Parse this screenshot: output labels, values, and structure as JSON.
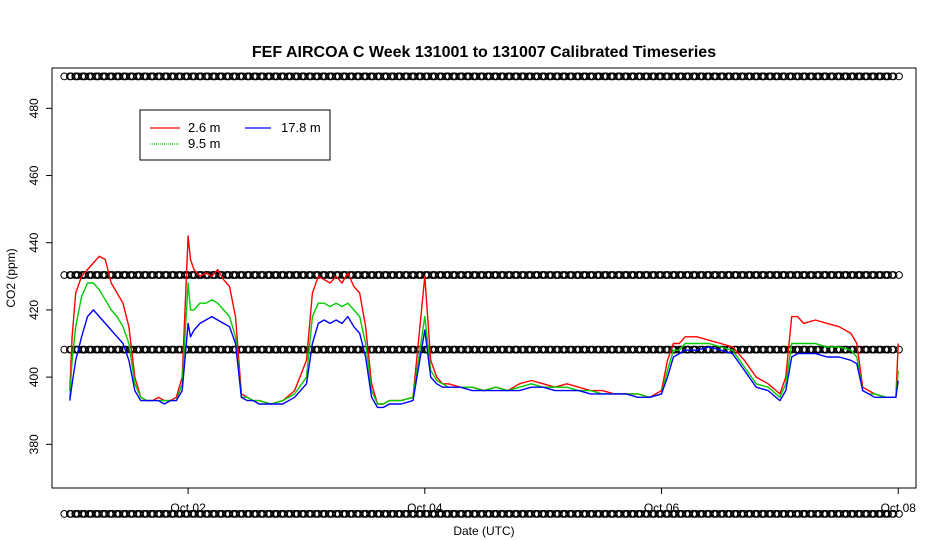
{
  "chart_data": {
    "type": "line",
    "title": "FEF AIRCOA C  Week 131001 to 131007  Calibrated Timeseries",
    "xlabel": "Date (UTC)",
    "ylabel": "CO2 (ppm)",
    "x_ticks": [
      "Oct 02",
      "Oct 04",
      "Oct 06",
      "Oct 08"
    ],
    "x_tick_days": [
      2,
      4,
      6,
      8
    ],
    "xlim": [
      0.85,
      8.15
    ],
    "y_ticks": [
      380,
      400,
      420,
      440,
      460,
      480
    ],
    "ylim": [
      367,
      492
    ],
    "grid": false,
    "legend": {
      "placement": "top-left",
      "entries": [
        "2.6 m",
        "9.5 m",
        "17.8 m"
      ]
    },
    "colors": {
      "2.6 m": "#ff0000",
      "9.5 m": "#00cc00",
      "17.8 m": "#0000ff",
      "reference": "#000000"
    },
    "series": [
      {
        "name": "2.6 m",
        "x": [
          1.0,
          1.02,
          1.05,
          1.1,
          1.15,
          1.2,
          1.25,
          1.3,
          1.35,
          1.4,
          1.45,
          1.5,
          1.55,
          1.6,
          1.65,
          1.7,
          1.75,
          1.8,
          1.85,
          1.9,
          1.95,
          2.0,
          2.02,
          2.05,
          2.1,
          2.15,
          2.2,
          2.25,
          2.3,
          2.35,
          2.4,
          2.45,
          2.5,
          2.55,
          2.6,
          2.7,
          2.8,
          2.9,
          3.0,
          3.05,
          3.1,
          3.15,
          3.2,
          3.25,
          3.3,
          3.35,
          3.4,
          3.45,
          3.5,
          3.55,
          3.6,
          3.65,
          3.7,
          3.8,
          3.9,
          4.0,
          4.05,
          4.1,
          4.15,
          4.2,
          4.3,
          4.4,
          4.5,
          4.6,
          4.7,
          4.8,
          4.9,
          5.0,
          5.1,
          5.2,
          5.3,
          5.4,
          5.5,
          5.6,
          5.7,
          5.8,
          5.9,
          6.0,
          6.05,
          6.1,
          6.15,
          6.2,
          6.3,
          6.4,
          6.5,
          6.6,
          6.7,
          6.8,
          6.9,
          7.0,
          7.05,
          7.1,
          7.15,
          7.2,
          7.3,
          7.4,
          7.5,
          7.6,
          7.65,
          7.7,
          7.75,
          7.8,
          7.9,
          7.98,
          8.0
        ],
        "values": [
          396,
          412,
          425,
          430,
          432,
          434,
          436,
          435,
          428,
          425,
          422,
          415,
          400,
          394,
          393,
          393,
          394,
          393,
          393,
          394,
          400,
          442,
          435,
          432,
          430,
          431,
          430,
          432,
          429,
          427,
          418,
          395,
          394,
          393,
          393,
          392,
          393,
          396,
          405,
          425,
          430,
          429,
          428,
          430,
          428,
          431,
          427,
          425,
          415,
          398,
          392,
          392,
          393,
          393,
          394,
          430,
          405,
          400,
          398,
          398,
          397,
          397,
          396,
          397,
          396,
          398,
          399,
          398,
          397,
          398,
          397,
          396,
          396,
          395,
          395,
          395,
          394,
          396,
          405,
          410,
          410,
          412,
          412,
          411,
          410,
          409,
          405,
          400,
          398,
          395,
          400,
          418,
          418,
          416,
          417,
          416,
          415,
          413,
          410,
          397,
          396,
          395,
          394,
          394,
          410
        ]
      },
      {
        "name": "9.5 m",
        "x": [
          1.0,
          1.02,
          1.05,
          1.1,
          1.15,
          1.2,
          1.25,
          1.3,
          1.35,
          1.4,
          1.45,
          1.5,
          1.55,
          1.6,
          1.65,
          1.7,
          1.75,
          1.8,
          1.85,
          1.9,
          1.95,
          2.0,
          2.02,
          2.05,
          2.1,
          2.15,
          2.2,
          2.25,
          2.3,
          2.35,
          2.4,
          2.45,
          2.5,
          2.55,
          2.6,
          2.7,
          2.8,
          2.9,
          3.0,
          3.05,
          3.1,
          3.15,
          3.2,
          3.25,
          3.3,
          3.35,
          3.4,
          3.45,
          3.5,
          3.55,
          3.6,
          3.65,
          3.7,
          3.8,
          3.9,
          4.0,
          4.05,
          4.1,
          4.15,
          4.2,
          4.3,
          4.4,
          4.5,
          4.6,
          4.7,
          4.8,
          4.9,
          5.0,
          5.1,
          5.2,
          5.3,
          5.4,
          5.5,
          5.6,
          5.7,
          5.8,
          5.9,
          6.0,
          6.05,
          6.1,
          6.15,
          6.2,
          6.3,
          6.4,
          6.5,
          6.6,
          6.7,
          6.8,
          6.9,
          7.0,
          7.05,
          7.1,
          7.15,
          7.2,
          7.3,
          7.4,
          7.5,
          7.6,
          7.65,
          7.7,
          7.75,
          7.8,
          7.9,
          7.98,
          8.0
        ],
        "values": [
          394,
          405,
          415,
          424,
          428,
          428,
          426,
          423,
          420,
          418,
          415,
          410,
          398,
          394,
          393,
          393,
          393,
          393,
          393,
          393,
          398,
          428,
          420,
          420,
          422,
          422,
          423,
          422,
          420,
          418,
          412,
          394,
          394,
          393,
          393,
          392,
          393,
          395,
          400,
          418,
          422,
          422,
          421,
          422,
          421,
          422,
          420,
          418,
          410,
          396,
          392,
          392,
          393,
          393,
          394,
          418,
          402,
          399,
          398,
          397,
          397,
          397,
          396,
          397,
          396,
          397,
          398,
          397,
          397,
          397,
          396,
          396,
          395,
          395,
          395,
          395,
          394,
          395,
          402,
          408,
          408,
          410,
          410,
          410,
          409,
          408,
          403,
          398,
          397,
          394,
          398,
          410,
          410,
          410,
          410,
          409,
          409,
          408,
          406,
          396,
          395,
          395,
          394,
          394,
          402
        ]
      },
      {
        "name": "17.8 m",
        "x": [
          1.0,
          1.02,
          1.05,
          1.1,
          1.15,
          1.2,
          1.25,
          1.3,
          1.35,
          1.4,
          1.45,
          1.5,
          1.55,
          1.6,
          1.65,
          1.7,
          1.75,
          1.8,
          1.85,
          1.9,
          1.95,
          2.0,
          2.02,
          2.05,
          2.1,
          2.15,
          2.2,
          2.25,
          2.3,
          2.35,
          2.4,
          2.45,
          2.5,
          2.55,
          2.6,
          2.7,
          2.8,
          2.9,
          3.0,
          3.05,
          3.1,
          3.15,
          3.2,
          3.25,
          3.3,
          3.35,
          3.4,
          3.45,
          3.5,
          3.55,
          3.6,
          3.65,
          3.7,
          3.8,
          3.9,
          4.0,
          4.05,
          4.1,
          4.15,
          4.2,
          4.3,
          4.4,
          4.5,
          4.6,
          4.7,
          4.8,
          4.9,
          5.0,
          5.1,
          5.2,
          5.3,
          5.4,
          5.5,
          5.6,
          5.7,
          5.8,
          5.9,
          6.0,
          6.05,
          6.1,
          6.15,
          6.2,
          6.3,
          6.4,
          6.5,
          6.6,
          6.7,
          6.8,
          6.9,
          7.0,
          7.05,
          7.1,
          7.15,
          7.2,
          7.3,
          7.4,
          7.5,
          7.6,
          7.65,
          7.7,
          7.75,
          7.8,
          7.9,
          7.98,
          8.0
        ],
        "values": [
          393,
          398,
          405,
          412,
          418,
          420,
          418,
          416,
          414,
          412,
          410,
          405,
          396,
          393,
          393,
          393,
          393,
          392,
          393,
          393,
          396,
          416,
          412,
          414,
          416,
          417,
          418,
          417,
          416,
          415,
          410,
          394,
          393,
          393,
          392,
          392,
          392,
          394,
          398,
          410,
          416,
          417,
          416,
          417,
          416,
          418,
          415,
          413,
          406,
          394,
          391,
          391,
          392,
          392,
          393,
          414,
          400,
          398,
          397,
          397,
          397,
          396,
          396,
          396,
          396,
          396,
          397,
          397,
          396,
          396,
          396,
          395,
          395,
          395,
          395,
          394,
          394,
          395,
          400,
          406,
          407,
          408,
          408,
          409,
          408,
          407,
          402,
          397,
          396,
          393,
          396,
          406,
          407,
          407,
          407,
          406,
          406,
          405,
          404,
          396,
          395,
          394,
          394,
          394,
          399
        ]
      }
    ],
    "reference_levels": [
      489.5,
      430.4,
      408.2,
      359.3
    ]
  }
}
